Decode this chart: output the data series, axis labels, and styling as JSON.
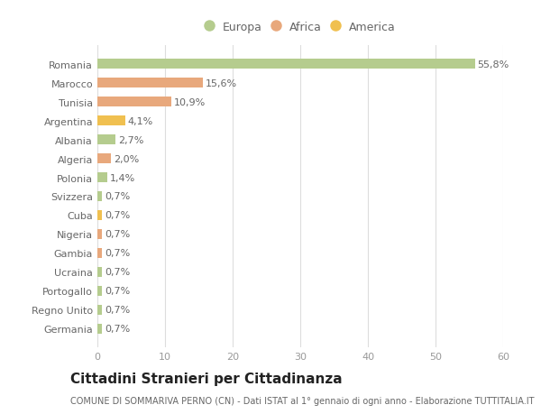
{
  "categories": [
    "Romania",
    "Marocco",
    "Tunisia",
    "Argentina",
    "Albania",
    "Algeria",
    "Polonia",
    "Svizzera",
    "Cuba",
    "Nigeria",
    "Gambia",
    "Ucraina",
    "Portogallo",
    "Regno Unito",
    "Germania"
  ],
  "values": [
    55.8,
    15.6,
    10.9,
    4.1,
    2.7,
    2.0,
    1.4,
    0.7,
    0.7,
    0.7,
    0.7,
    0.7,
    0.7,
    0.7,
    0.7
  ],
  "labels": [
    "55,8%",
    "15,6%",
    "10,9%",
    "4,1%",
    "2,7%",
    "2,0%",
    "1,4%",
    "0,7%",
    "0,7%",
    "0,7%",
    "0,7%",
    "0,7%",
    "0,7%",
    "0,7%",
    "0,7%"
  ],
  "colors": [
    "#b5cc8e",
    "#e8a87c",
    "#e8a87c",
    "#f0c050",
    "#b5cc8e",
    "#e8a87c",
    "#b5cc8e",
    "#b5cc8e",
    "#f0c050",
    "#e8a87c",
    "#e8a87c",
    "#b5cc8e",
    "#b5cc8e",
    "#b5cc8e",
    "#b5cc8e"
  ],
  "legend": [
    {
      "label": "Europa",
      "color": "#b5cc8e"
    },
    {
      "label": "Africa",
      "color": "#e8a87c"
    },
    {
      "label": "America",
      "color": "#f0c050"
    }
  ],
  "xlim": [
    0,
    60
  ],
  "xticks": [
    0,
    10,
    20,
    30,
    40,
    50,
    60
  ],
  "title": "Cittadini Stranieri per Cittadinanza",
  "subtitle": "COMUNE DI SOMMARIVA PERNO (CN) - Dati ISTAT al 1° gennaio di ogni anno - Elaborazione TUTTITALIA.IT",
  "background_color": "#ffffff",
  "grid_color": "#dddddd",
  "title_fontsize": 11,
  "subtitle_fontsize": 7,
  "label_fontsize": 8,
  "tick_fontsize": 8,
  "legend_fontsize": 9
}
